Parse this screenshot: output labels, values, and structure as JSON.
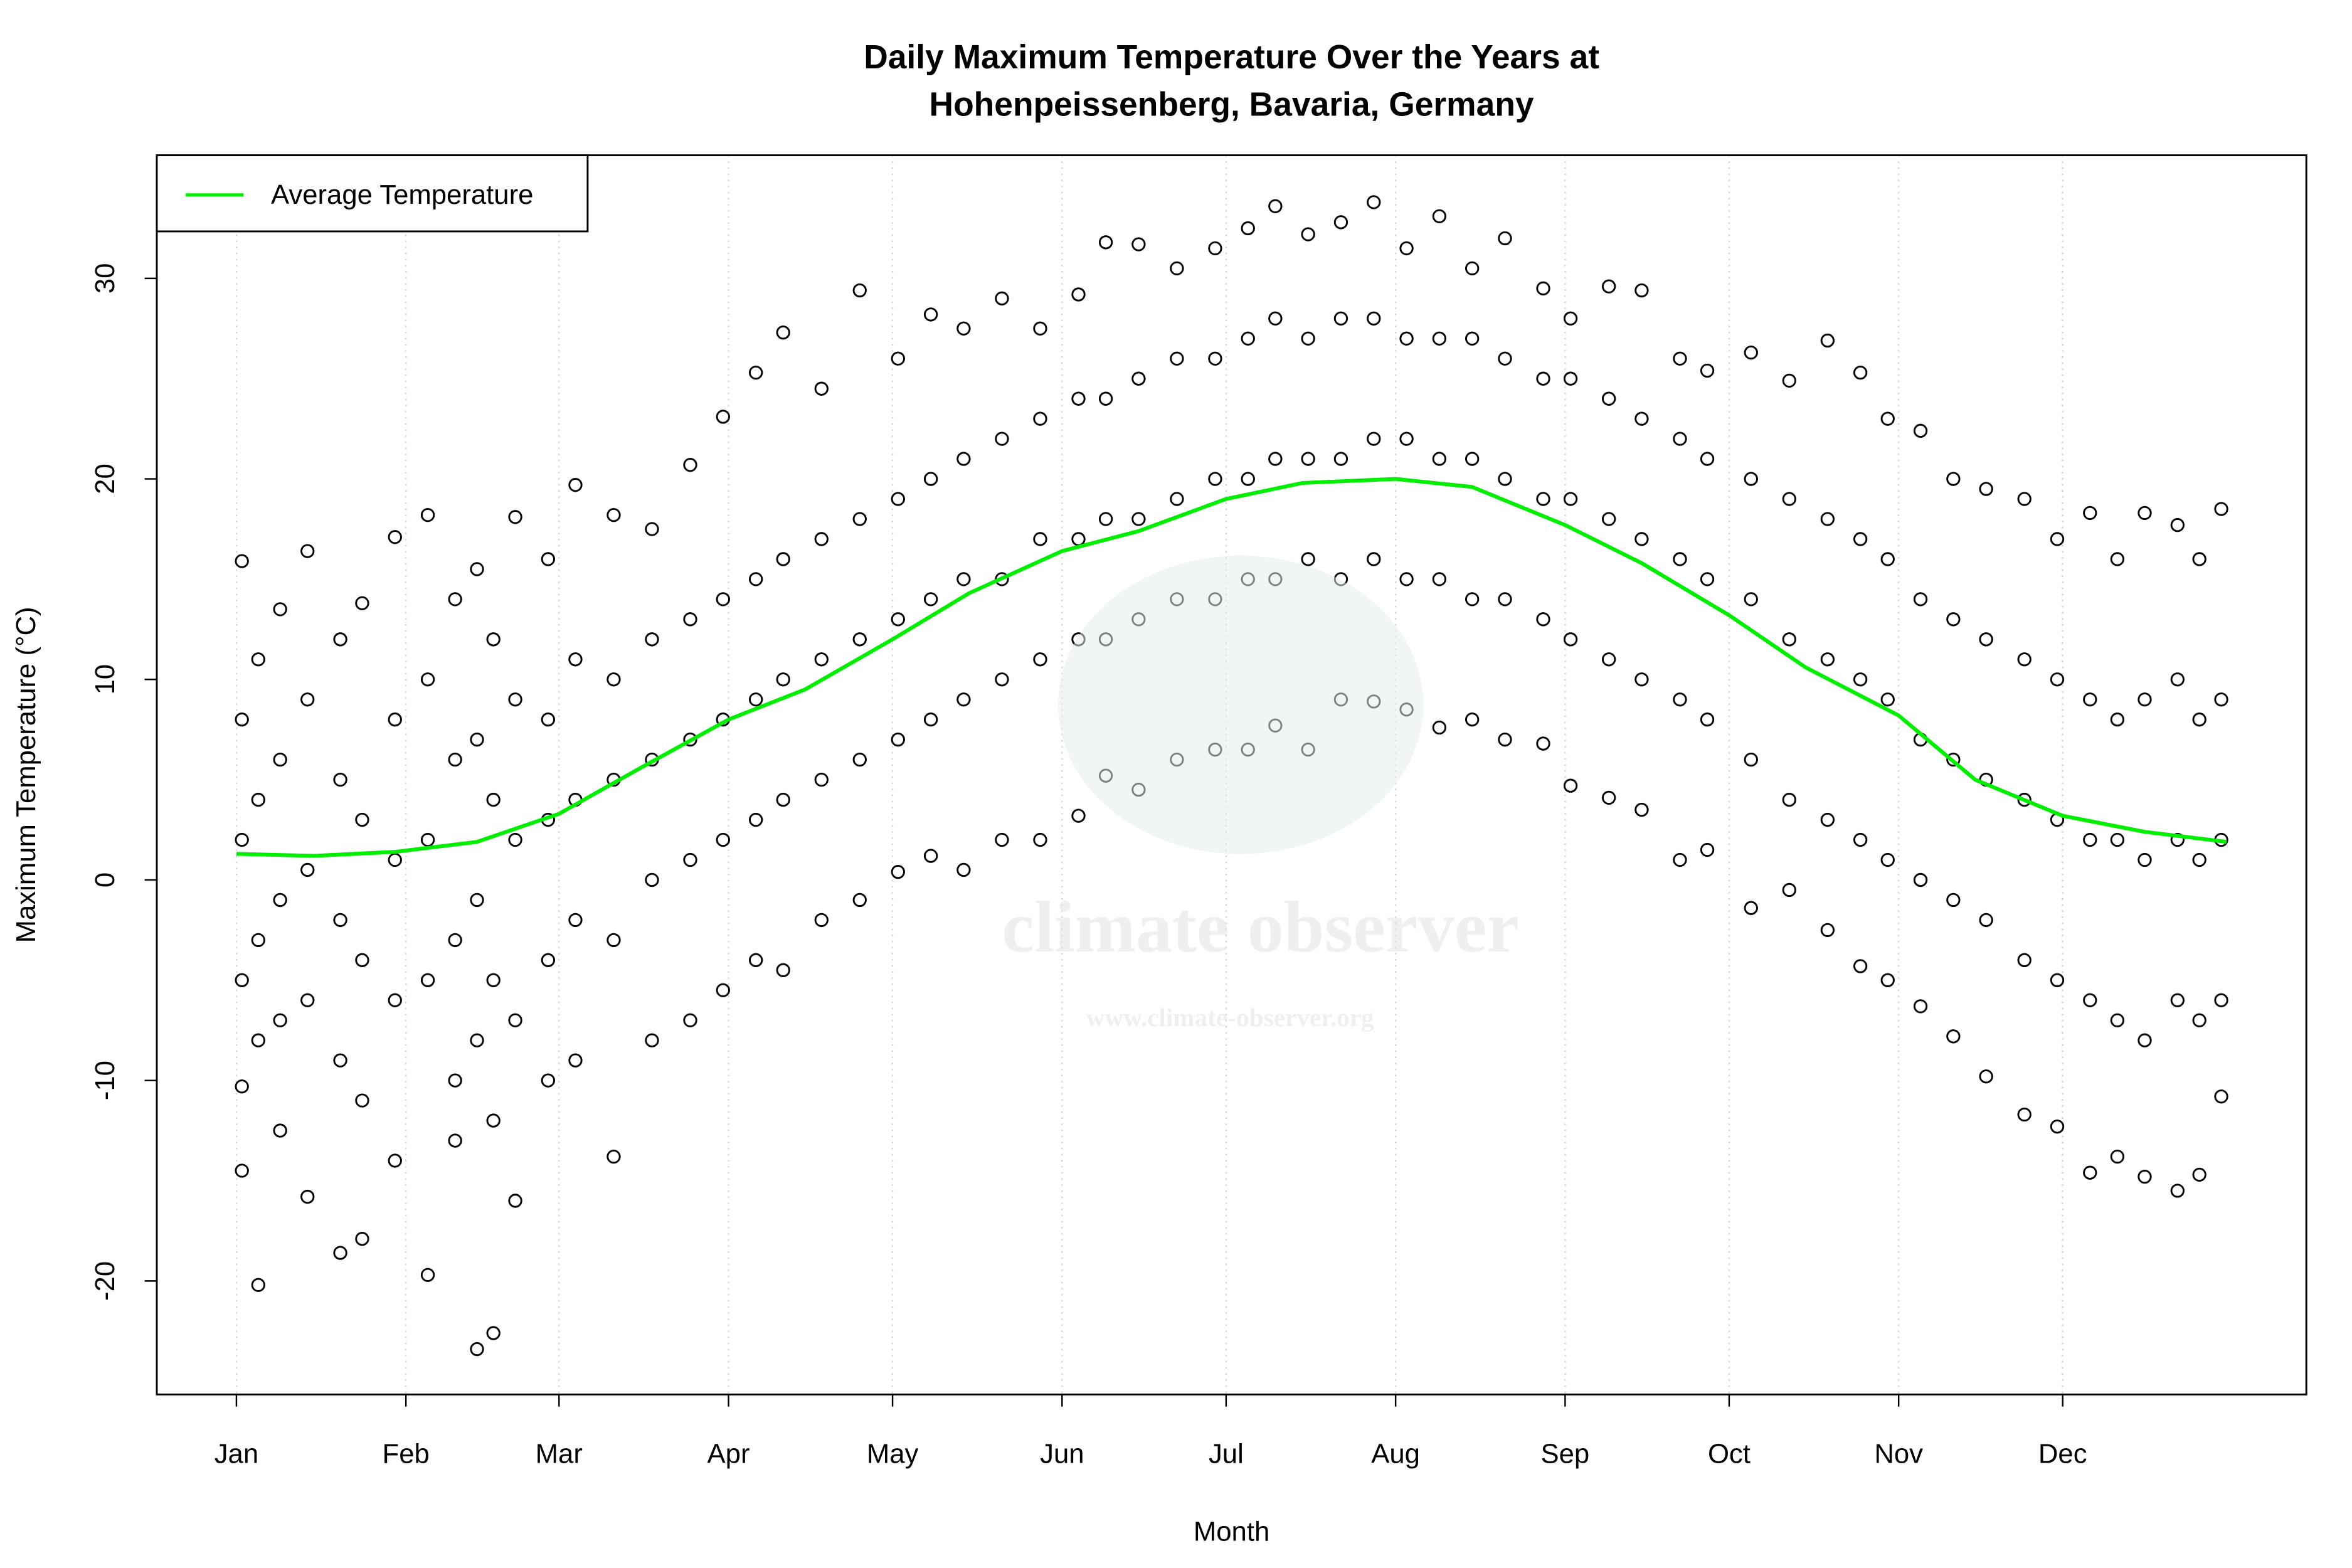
{
  "chart_data": {
    "type": "scatter",
    "title": [
      "Daily Maximum Temperature Over the Years at",
      "Hohenpeissenberg, Bavaria, Germany"
    ],
    "x_label": "Month",
    "y_label": "Maximum Temperature (°C)",
    "watermark": [
      "climate observer",
      "www.climate-observer.org"
    ],
    "xlim": [
      -13.56,
      379.56
    ],
    "ylim": [
      -25.66,
      36.14
    ],
    "xticks": [
      {
        "value": 1,
        "label": "Jan"
      },
      {
        "value": 32,
        "label": "Feb"
      },
      {
        "value": 60,
        "label": "Mar"
      },
      {
        "value": 91,
        "label": "Apr"
      },
      {
        "value": 121,
        "label": "May"
      },
      {
        "value": 152,
        "label": "Jun"
      },
      {
        "value": 182,
        "label": "Jul"
      },
      {
        "value": 213,
        "label": "Aug"
      },
      {
        "value": 244,
        "label": "Sep"
      },
      {
        "value": 274,
        "label": "Oct"
      },
      {
        "value": 305,
        "label": "Nov"
      },
      {
        "value": 335,
        "label": "Dec"
      }
    ],
    "yticks": [
      -20,
      -10,
      0,
      10,
      20,
      30
    ],
    "grid": true,
    "legend": "topleft",
    "point_color": "#000000",
    "x": [
      2,
      2,
      2,
      2,
      2,
      2,
      5,
      5,
      5,
      5,
      5,
      9,
      9,
      9,
      9,
      9,
      14,
      14,
      14,
      14,
      14,
      20,
      20,
      20,
      20,
      20,
      24,
      24,
      24,
      24,
      24,
      30,
      30,
      30,
      30,
      30,
      36,
      36,
      36,
      36,
      36,
      41,
      41,
      41,
      41,
      41,
      45,
      45,
      45,
      45,
      45,
      48,
      48,
      48,
      48,
      48,
      52,
      52,
      52,
      52,
      52,
      58,
      58,
      58,
      58,
      58,
      63,
      63,
      63,
      63,
      63,
      70,
      70,
      70,
      70,
      70,
      77,
      77,
      77,
      77,
      77,
      84,
      84,
      84,
      84,
      84,
      90,
      90,
      90,
      90,
      90,
      96,
      96,
      96,
      96,
      96,
      101,
      101,
      101,
      101,
      101,
      108,
      108,
      108,
      108,
      108,
      115,
      115,
      115,
      115,
      115,
      122,
      122,
      122,
      122,
      122,
      128,
      128,
      128,
      128,
      128,
      134,
      134,
      134,
      134,
      134,
      141,
      141,
      141,
      141,
      141,
      148,
      148,
      148,
      148,
      148,
      155,
      155,
      155,
      155,
      155,
      160,
      160,
      160,
      160,
      160,
      166,
      166,
      166,
      166,
      166,
      173,
      173,
      173,
      173,
      173,
      180,
      180,
      180,
      180,
      180,
      186,
      186,
      186,
      186,
      186,
      191,
      191,
      191,
      191,
      191,
      197,
      197,
      197,
      197,
      197,
      203,
      203,
      203,
      203,
      203,
      209,
      209,
      209,
      209,
      209,
      215,
      215,
      215,
      215,
      215,
      221,
      221,
      221,
      221,
      221,
      227,
      227,
      227,
      227,
      227,
      233,
      233,
      233,
      233,
      233,
      240,
      240,
      240,
      240,
      240,
      245,
      245,
      245,
      245,
      245,
      252,
      252,
      252,
      252,
      252,
      258,
      258,
      258,
      258,
      258,
      265,
      265,
      265,
      265,
      265,
      270,
      270,
      270,
      270,
      270,
      278,
      278,
      278,
      278,
      278,
      285,
      285,
      285,
      285,
      285,
      292,
      292,
      292,
      292,
      292,
      298,
      298,
      298,
      298,
      298,
      303,
      303,
      303,
      303,
      303,
      309,
      309,
      309,
      309,
      309,
      315,
      315,
      315,
      315,
      315,
      321,
      321,
      321,
      321,
      321,
      328,
      328,
      328,
      328,
      328,
      334,
      334,
      334,
      334,
      334,
      340,
      340,
      340,
      340,
      340,
      345,
      345,
      345,
      345,
      345,
      350,
      350,
      350,
      350,
      350,
      356,
      356,
      356,
      356,
      356,
      360,
      360,
      360,
      360,
      360,
      364,
      364,
      364,
      364,
      364
    ],
    "values": [
      15.9,
      8,
      2,
      -5,
      -10.3,
      -14.5,
      -20.2,
      11,
      4,
      -3,
      -8,
      13.5,
      6,
      -1,
      -7,
      -12.5,
      16.4,
      9,
      0.5,
      -6,
      -15.8,
      12,
      5,
      -2,
      -9,
      -18.6,
      13.8,
      3,
      -4,
      -11,
      -17.9,
      17.1,
      8,
      1,
      -6,
      -14,
      18.2,
      10,
      2,
      -5,
      -19.7,
      14,
      6,
      -3,
      -10,
      -13,
      15.5,
      7,
      -1,
      -8,
      -23.4,
      12,
      4,
      -5,
      -12,
      -22.6,
      18.1,
      9,
      2,
      -7,
      -16,
      16,
      8,
      3,
      -4,
      -10,
      19.7,
      11,
      4,
      -2,
      -9,
      18.2,
      10,
      5,
      -3,
      -13.8,
      17.5,
      12,
      6,
      0,
      -8,
      20.7,
      13,
      7,
      1,
      -7,
      23.1,
      14,
      8,
      2,
      -5.5,
      25.3,
      15,
      9,
      3,
      -4,
      27.3,
      16,
      10,
      4,
      -4.5,
      24.5,
      17,
      11,
      5,
      -2,
      29.4,
      18,
      12,
      6,
      -1,
      26,
      19,
      13,
      7,
      0.4,
      28.2,
      20,
      14,
      8,
      1.2,
      27.5,
      21,
      15,
      9,
      0.5,
      29,
      22,
      15,
      10,
      2,
      27.5,
      23,
      17,
      11,
      2,
      29.2,
      24,
      17,
      12,
      3.2,
      31.8,
      24,
      18,
      12,
      5.2,
      31.7,
      25,
      18,
      13,
      4.5,
      30.5,
      26,
      19,
      14,
      6,
      31.5,
      26,
      20,
      14,
      6.5,
      32.5,
      27,
      20,
      15,
      6.5,
      33.6,
      28,
      21,
      15,
      7.7,
      32.2,
      27,
      21,
      16,
      6.5,
      32.8,
      28,
      21,
      15,
      9,
      33.8,
      28,
      22,
      16,
      8.9,
      31.5,
      27,
      22,
      15,
      8.5,
      33.1,
      27,
      21,
      15,
      7.6,
      30.5,
      27,
      21,
      14,
      8,
      32,
      26,
      20,
      14,
      7,
      29.5,
      25,
      19,
      13,
      6.8,
      28,
      25,
      19,
      12,
      4.7,
      29.6,
      24,
      18,
      11,
      4.1,
      29.4,
      23,
      17,
      10,
      3.5,
      26,
      22,
      16,
      9,
      1,
      25.4,
      21,
      15,
      8,
      1.5,
      26.3,
      20,
      14,
      6,
      -1.4,
      24.9,
      19,
      12,
      4,
      -0.5,
      26.9,
      18,
      11,
      3,
      -2.5,
      25.3,
      17,
      10,
      2,
      -4.3,
      23,
      16,
      9,
      1,
      -5,
      22.4,
      14,
      7,
      0,
      -6.3,
      20,
      13,
      6,
      -1,
      -7.8,
      19.5,
      12,
      5,
      -2,
      -9.8,
      19,
      11,
      4,
      -4,
      -11.7,
      17,
      10,
      3,
      -5,
      -12.3,
      18.3,
      9,
      2,
      -6,
      -14.6,
      16,
      8,
      2,
      -7,
      -13.8,
      18.3,
      9,
      1,
      -8,
      -14.8,
      17.7,
      10,
      2,
      -6,
      -15.5,
      16,
      8,
      1,
      -7,
      -14.7,
      18.5,
      9,
      2,
      -6,
      -10.8
    ],
    "series": [
      {
        "name": "Average Temperature",
        "color": "#00ee00",
        "x": [
          1,
          15,
          30,
          45,
          60,
          75,
          91,
          105,
          121,
          135,
          152,
          166,
          182,
          196,
          213,
          227,
          244,
          258,
          274,
          288,
          305,
          319,
          335,
          350,
          365
        ],
        "values": [
          1.3,
          1.2,
          1.4,
          1.9,
          3.3,
          5.6,
          8.0,
          9.5,
          12.0,
          14.3,
          16.4,
          17.4,
          19.0,
          19.8,
          20.0,
          19.6,
          17.7,
          15.8,
          13.2,
          10.6,
          8.2,
          5.0,
          3.2,
          2.4,
          1.9
        ]
      }
    ]
  }
}
